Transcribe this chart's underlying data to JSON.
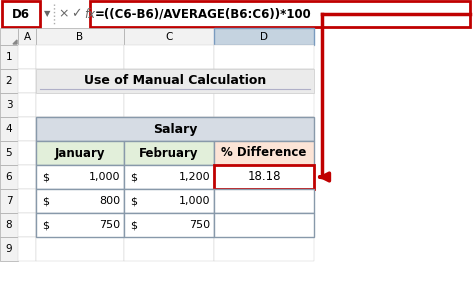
{
  "title": "Use of Manual Calculation",
  "formula_bar_cell": "D6",
  "formula_bar_text": "=((C6-B6)/AVERAGE(B6:C6))*100",
  "col_headers": [
    "A",
    "B",
    "C",
    "D"
  ],
  "row_numbers": [
    "1",
    "2",
    "3",
    "4",
    "5",
    "6",
    "7",
    "8",
    "9"
  ],
  "salary_header": "Salary",
  "col5_headers": [
    "January",
    "February",
    "% Difference"
  ],
  "jan_values": [
    "1,000",
    "800",
    "750"
  ],
  "feb_values": [
    "1,200",
    "1,000",
    "750"
  ],
  "pct_diff_values": [
    "18.18",
    "",
    ""
  ],
  "bg_color": "#ffffff",
  "grid_bg": "#f2f2f2",
  "col_d_header_bg": "#c5d3e0",
  "salary_header_bg": "#d6dce4",
  "jan_header_bg": "#e2efda",
  "pct_header_bg": "#fce4d6",
  "formula_box_color": "#c00000",
  "cell_highlight_border": "#c00000",
  "arrow_color": "#c00000",
  "title_bg": "#ebebeb",
  "title_underline": "#b0b0c8"
}
